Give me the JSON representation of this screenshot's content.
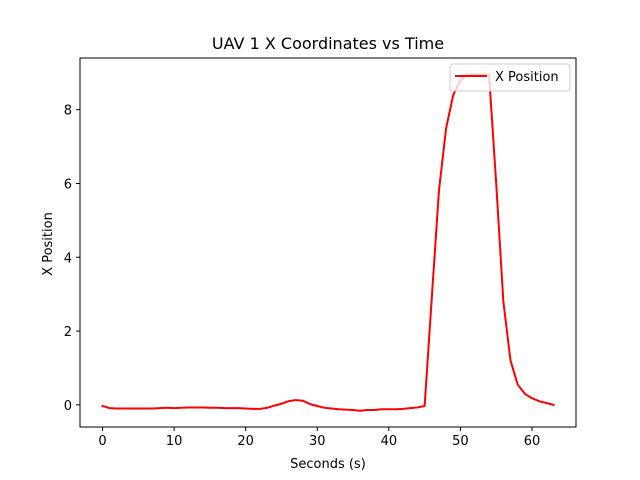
{
  "chart_data": {
    "type": "line",
    "title": "UAV 1 X Coordinates vs Time",
    "xlabel": "Seconds (s)",
    "ylabel": "X Position",
    "xlim": [
      -3.15,
      66.15
    ],
    "ylim": [
      -0.6,
      9.4
    ],
    "xticks": [
      0,
      10,
      20,
      30,
      40,
      50,
      60
    ],
    "yticks": [
      0,
      2,
      4,
      6,
      8
    ],
    "grid": false,
    "legend_position": "top-right",
    "series": [
      {
        "name": "X Position",
        "color": "#ff0000",
        "x": [
          0,
          1,
          2,
          3,
          4,
          5,
          6,
          7,
          8,
          9,
          10,
          11,
          12,
          13,
          14,
          15,
          16,
          17,
          18,
          19,
          20,
          21,
          22,
          23,
          24,
          25,
          26,
          27,
          28,
          29,
          30,
          31,
          32,
          33,
          34,
          35,
          36,
          37,
          38,
          39,
          40,
          41,
          42,
          43,
          44,
          45,
          46,
          47,
          48,
          49,
          50,
          51,
          52,
          53,
          54,
          55,
          56,
          57,
          58,
          59,
          60,
          61,
          62,
          63
        ],
        "y": [
          -0.03,
          -0.09,
          -0.1,
          -0.1,
          -0.1,
          -0.1,
          -0.1,
          -0.1,
          -0.09,
          -0.08,
          -0.09,
          -0.08,
          -0.07,
          -0.07,
          -0.07,
          -0.08,
          -0.08,
          -0.09,
          -0.09,
          -0.09,
          -0.1,
          -0.11,
          -0.11,
          -0.08,
          -0.02,
          0.03,
          0.1,
          0.13,
          0.11,
          0.02,
          -0.03,
          -0.08,
          -0.1,
          -0.12,
          -0.13,
          -0.14,
          -0.16,
          -0.14,
          -0.14,
          -0.12,
          -0.12,
          -0.12,
          -0.11,
          -0.09,
          -0.07,
          -0.03,
          2.9,
          5.8,
          7.5,
          8.4,
          8.8,
          8.95,
          8.95,
          8.95,
          8.95,
          6.0,
          2.8,
          1.2,
          0.55,
          0.3,
          0.18,
          0.1,
          0.05,
          0.0
        ]
      }
    ]
  }
}
